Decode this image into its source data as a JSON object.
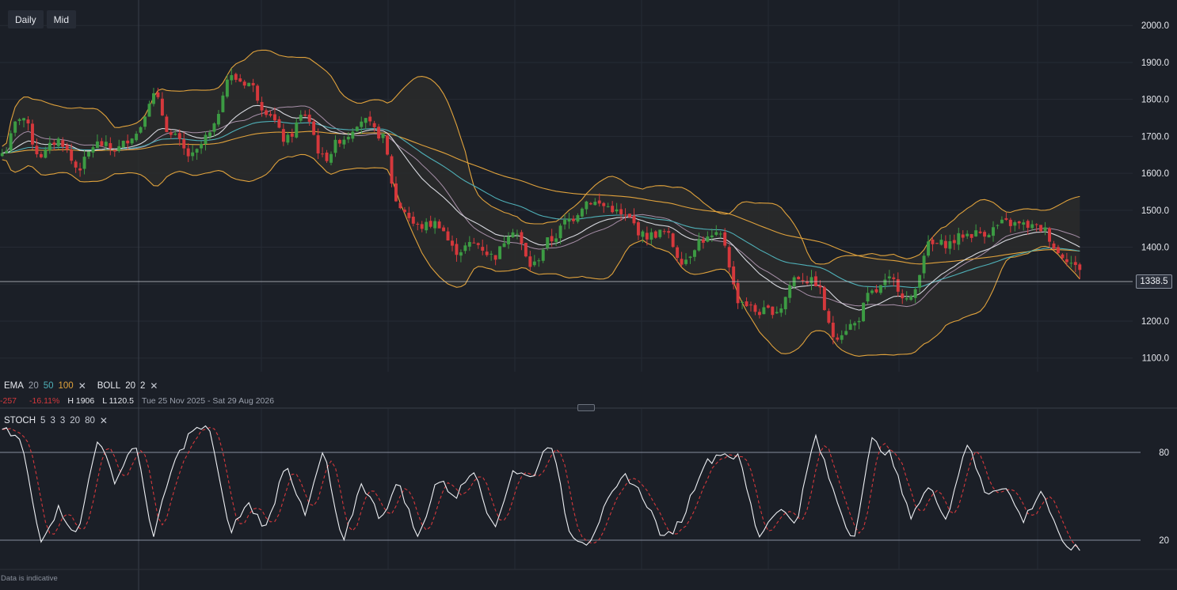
{
  "toolbar": {
    "timeframe": "Daily",
    "price_type": "Mid"
  },
  "price_axis": {
    "ticks": [
      "2000.0",
      "1900.0",
      "1800.0",
      "1700.0",
      "1600.0",
      "1500.0",
      "1400.0",
      "1300.0",
      "1200.0",
      "1100.0"
    ]
  },
  "current_price": {
    "label": "1338.5",
    "value": 1338.5
  },
  "legend": {
    "ema_label": "EMA",
    "ema_p1": "20",
    "ema_p2": "50",
    "ema_p3": "100",
    "boll_label": "BOLL",
    "boll_p1": "20",
    "boll_p2": "2",
    "change": "-257",
    "change_pct": "-16.11%",
    "high": "H 1906",
    "low": "L 1120.5",
    "range": "Tue 25 Nov 2025 - Sat 29 Aug 2026"
  },
  "stoch": {
    "label": "STOCH",
    "p1": "5",
    "p2": "3",
    "p3": "3",
    "p4": "20",
    "p5": "80",
    "levels": [
      "80",
      "20"
    ]
  },
  "disclaimer": "Data is indicative",
  "colors": {
    "up": "#3c9b43",
    "down": "#d5383c",
    "ema20": "#d7d9df",
    "ema50": "#4fb0b8",
    "ema100": "#e0a23c",
    "boll": "#e0a23c",
    "boll_fill": "#2a2c2c",
    "stoch_k": "#eef0f4",
    "stoch_d": "#d5383c"
  },
  "chart_data": {
    "type": "candlestick",
    "title": "",
    "price_range": [
      1063,
      2069
    ],
    "stoch_range": [
      0,
      100
    ],
    "anchors": [
      1655,
      1755,
      1650,
      1690,
      1615,
      1680,
      1665,
      1705,
      1810,
      1700,
      1645,
      1705,
      1860,
      1845,
      1770,
      1690,
      1760,
      1640,
      1695,
      1745,
      1705,
      1510,
      1455,
      1465,
      1390,
      1410,
      1375,
      1450,
      1350,
      1420,
      1475,
      1525,
      1510,
      1480,
      1430,
      1440,
      1365,
      1420,
      1430,
      1255,
      1225,
      1230,
      1320,
      1305,
      1160,
      1190,
      1275,
      1310,
      1255,
      1405,
      1410,
      1435,
      1440,
      1465,
      1460,
      1450,
      1380,
      1340
    ],
    "stoch_anchors": [
      96,
      88,
      20,
      42,
      22,
      90,
      60,
      88,
      22,
      70,
      95,
      96,
      25,
      45,
      28,
      75,
      35,
      82,
      15,
      60,
      35,
      60,
      20,
      62,
      50,
      70,
      25,
      68,
      62,
      90,
      25,
      18,
      45,
      65,
      48,
      20,
      35,
      70,
      80,
      76,
      22,
      42,
      32,
      92,
      52,
      19,
      88,
      78,
      36,
      56,
      35,
      88,
      52,
      58,
      33,
      55,
      18,
      13
    ]
  }
}
